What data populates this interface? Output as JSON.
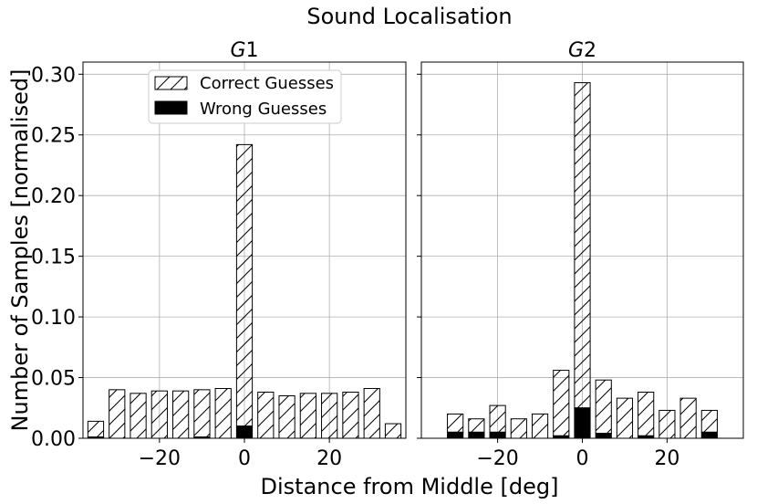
{
  "figure": {
    "title": "Sound Localisation",
    "xlabel": "Distance from Middle [deg]",
    "ylabel": "Number of Samples [normalised]"
  },
  "legend": {
    "location": "upper-center of first panel",
    "entries": [
      {
        "label": "Correct Guesses",
        "style": "hatched"
      },
      {
        "label": "Wrong Guesses",
        "style": "solid-black"
      }
    ]
  },
  "colors": {
    "bar_fill": "#ffffff",
    "bar_edge": "#000000",
    "wrong_fill": "#000000",
    "grid": "#b0b0b0"
  },
  "chart_data": [
    {
      "type": "bar",
      "stacked": true,
      "title_prefix": "G",
      "title_suffix": "1",
      "xlim": [
        -38,
        38
      ],
      "ylim": [
        0,
        0.31
      ],
      "xticks": [
        -20,
        0,
        20
      ],
      "xtick_labels": [
        "−20",
        "0",
        "20"
      ],
      "yticks": [
        0,
        0.05,
        0.1,
        0.15,
        0.2,
        0.25,
        0.3
      ],
      "ytick_labels": [
        "0.00",
        "0.05",
        "0.10",
        "0.15",
        "0.20",
        "0.25",
        "0.30"
      ],
      "grid": true,
      "bar_width": 3.7,
      "x": [
        -35,
        -30,
        -25,
        -20,
        -15,
        -10,
        -5,
        0,
        5,
        10,
        15,
        20,
        25,
        30,
        35
      ],
      "series": [
        {
          "name": "Wrong Guesses",
          "values": [
            0.001,
            0.0,
            0.0,
            0.0,
            0.0,
            0.001,
            0.0,
            0.01,
            0.0,
            0.0,
            0.0,
            0.0,
            0.0,
            0.0,
            0.0
          ]
        },
        {
          "name": "Correct Guesses",
          "values": [
            0.013,
            0.04,
            0.037,
            0.039,
            0.039,
            0.039,
            0.041,
            0.232,
            0.038,
            0.035,
            0.037,
            0.037,
            0.038,
            0.041,
            0.012
          ]
        }
      ]
    },
    {
      "type": "bar",
      "stacked": true,
      "title_prefix": "G",
      "title_suffix": "2",
      "xlim": [
        -38,
        38
      ],
      "ylim": [
        0,
        0.31
      ],
      "xticks": [
        -20,
        0,
        20
      ],
      "xtick_labels": [
        "−20",
        "0",
        "20"
      ],
      "yticks": [
        0,
        0.05,
        0.1,
        0.15,
        0.2,
        0.25,
        0.3
      ],
      "ytick_labels": [],
      "grid": true,
      "bar_width": 3.7,
      "x": [
        -30,
        -25,
        -20,
        -15,
        -10,
        -5,
        0,
        5,
        10,
        15,
        20,
        25,
        30
      ],
      "series": [
        {
          "name": "Wrong Guesses",
          "values": [
            0.005,
            0.005,
            0.005,
            0.0,
            0.0,
            0.002,
            0.025,
            0.004,
            0.0,
            0.002,
            0.0,
            0.0,
            0.005
          ]
        },
        {
          "name": "Correct Guesses",
          "values": [
            0.015,
            0.011,
            0.022,
            0.016,
            0.02,
            0.054,
            0.268,
            0.044,
            0.033,
            0.036,
            0.023,
            0.033,
            0.018
          ]
        }
      ]
    }
  ]
}
